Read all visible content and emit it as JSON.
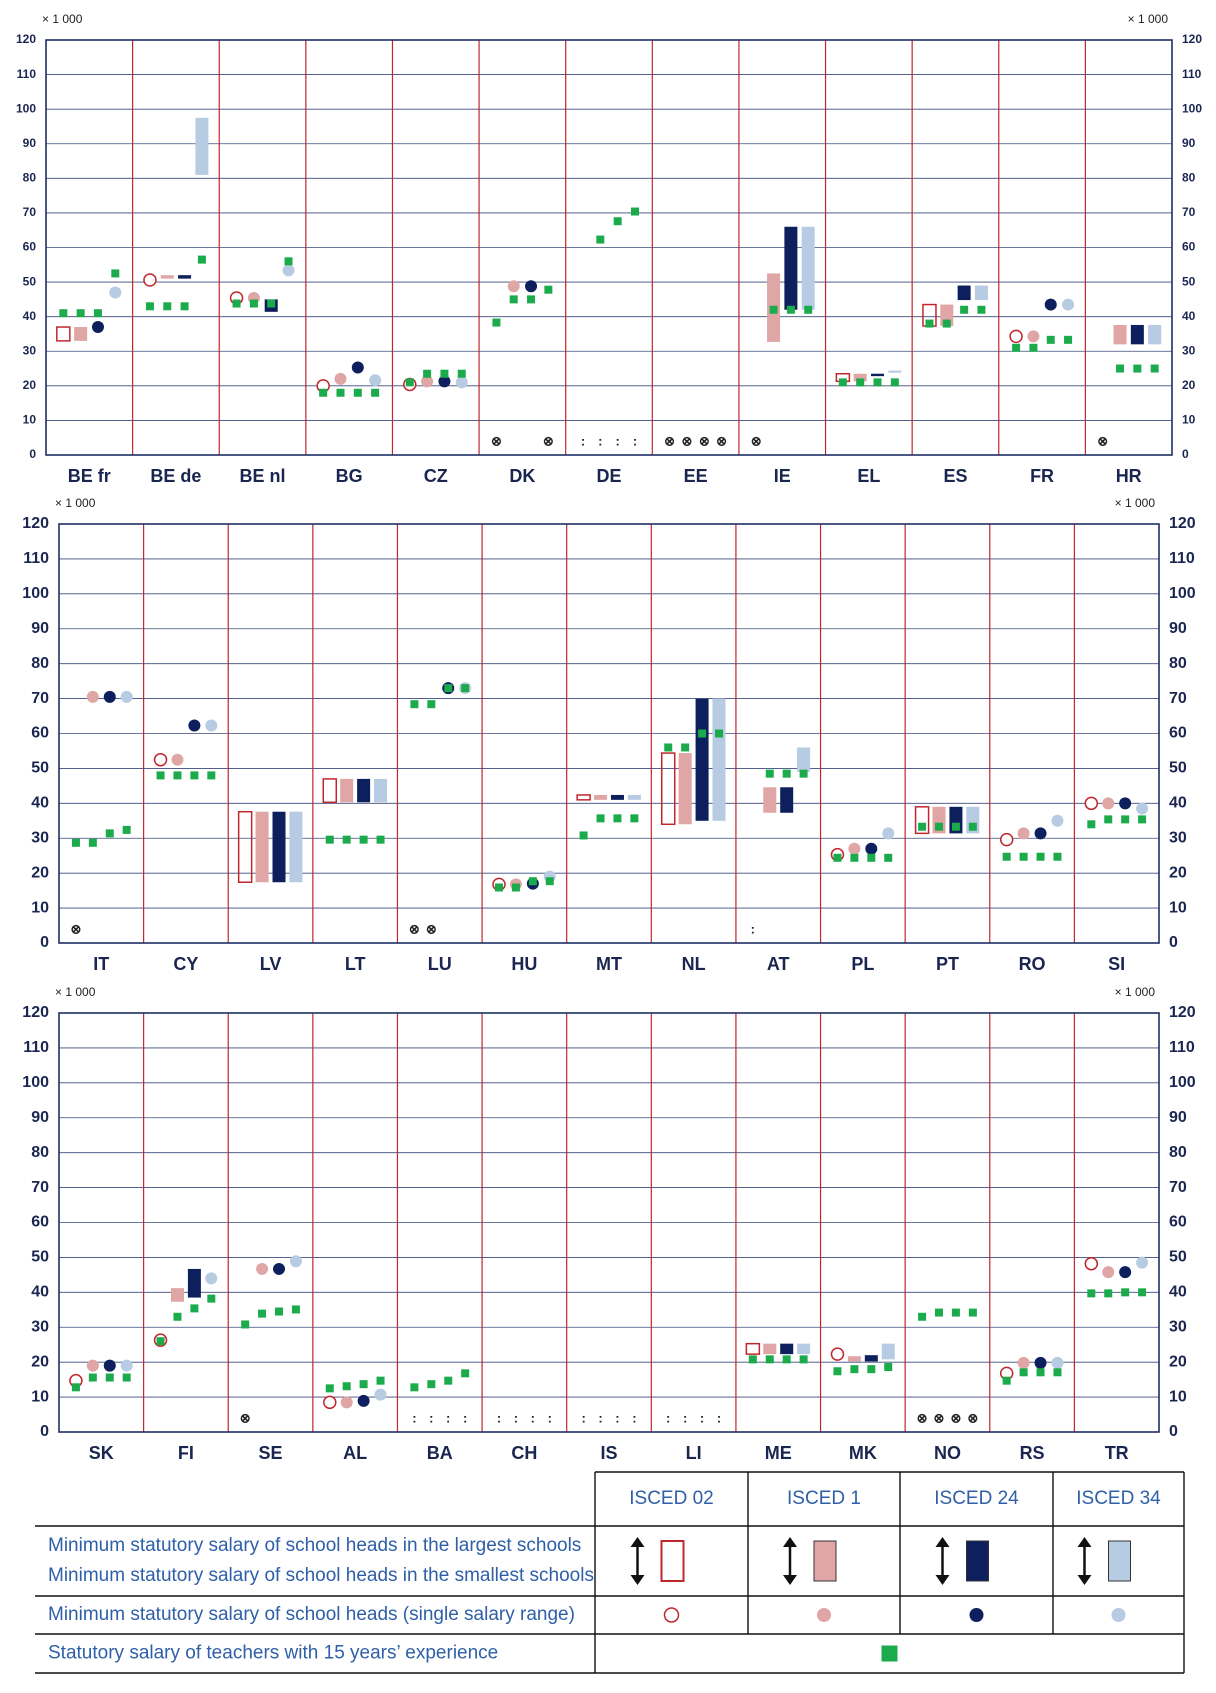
{
  "chart_data": [
    {
      "type": "range",
      "unit_label": "× 1 000",
      "ylim": [
        0,
        120
      ],
      "yticks": [
        0,
        10,
        20,
        30,
        40,
        50,
        60,
        70,
        80,
        90,
        100,
        110,
        120
      ],
      "grid": true,
      "categories": [
        "BE fr",
        "BE de",
        "BE nl",
        "BG",
        "CZ",
        "DK",
        "DE",
        "EE",
        "IE",
        "EL",
        "ES",
        "FR",
        "HR"
      ],
      "levels": [
        [
          [
            33,
            37
          ],
          [
            33,
            37
          ],
          37,
          47
        ],
        [
          50.6,
          [
            51,
            52
          ],
          [
            51,
            52
          ],
          [
            81,
            97.5
          ]
        ],
        [
          45.4,
          45.4,
          [
            41.4,
            45
          ],
          53.4
        ],
        [
          20,
          22,
          25.3,
          21.6
        ],
        [
          20.4,
          21.3,
          21.3,
          21
        ],
        [
          null,
          48.8,
          48.8,
          null
        ],
        [
          null,
          null,
          null,
          null
        ],
        [
          null,
          null,
          null,
          null
        ],
        [
          null,
          [
            32.7,
            52.5
          ],
          [
            42,
            66
          ],
          [
            42,
            66
          ]
        ],
        [
          [
            21.3,
            23.5
          ],
          [
            21.3,
            23.5
          ],
          [
            22.8,
            23.5
          ],
          [
            23.8,
            24.4
          ]
        ],
        [
          [
            37.3,
            43.5
          ],
          [
            37.3,
            43.5
          ],
          [
            44.8,
            49
          ],
          [
            44.8,
            49
          ]
        ],
        [
          34.3,
          34.3,
          43.5,
          43.5
        ],
        [
          null,
          [
            32,
            37.6
          ],
          [
            32,
            37.6
          ],
          [
            32,
            37.6
          ]
        ]
      ],
      "teacher": [
        [
          41,
          41,
          41,
          52.5
        ],
        [
          43,
          43,
          43,
          56.5
        ],
        [
          43.8,
          43.8,
          43.8,
          56
        ],
        [
          18,
          18,
          18,
          18
        ],
        [
          21,
          23.5,
          23.5,
          23.5
        ],
        [
          38.3,
          45,
          45,
          47.8
        ],
        [
          null,
          62.3,
          67.6,
          70.4
        ],
        [
          null,
          null,
          null,
          null
        ],
        [
          null,
          42,
          42,
          42
        ],
        [
          21,
          21,
          21,
          21
        ],
        [
          38,
          38,
          42,
          42
        ],
        [
          31,
          31,
          33.3,
          33.3
        ],
        [
          null,
          25,
          25,
          25
        ]
      ],
      "notes": [
        [
          null,
          null,
          null,
          null
        ],
        [
          null,
          null,
          null,
          null
        ],
        [
          null,
          null,
          null,
          null
        ],
        [
          null,
          null,
          null,
          null
        ],
        [
          null,
          null,
          null,
          null
        ],
        [
          "⊗",
          null,
          null,
          "⊗"
        ],
        [
          ":",
          ":",
          ":",
          ":"
        ],
        [
          "⊗",
          "⊗",
          "⊗",
          "⊗"
        ],
        [
          "⊗",
          null,
          null,
          null
        ],
        [
          null,
          null,
          null,
          null
        ],
        [
          null,
          null,
          null,
          null
        ],
        [
          null,
          null,
          null,
          null
        ],
        [
          "⊗",
          null,
          null,
          null
        ]
      ]
    },
    {
      "type": "range",
      "unit_label": "× 1 000",
      "ylim": [
        0,
        120
      ],
      "yticks": [
        0,
        10,
        20,
        30,
        40,
        50,
        60,
        70,
        80,
        90,
        100,
        110,
        120
      ],
      "grid": true,
      "categories": [
        "IT",
        "CY",
        "LV",
        "LT",
        "LU",
        "HU",
        "MT",
        "NL",
        "AT",
        "PL",
        "PT",
        "RO",
        "SI"
      ],
      "levels": [
        [
          null,
          70.5,
          70.5,
          70.5
        ],
        [
          52.5,
          52.5,
          62.3,
          62.3
        ],
        [
          [
            17.4,
            37.6
          ],
          [
            17.4,
            37.6
          ],
          [
            17.4,
            37.6
          ],
          [
            17.4,
            37.6
          ]
        ],
        [
          [
            40.3,
            47
          ],
          [
            40.3,
            47
          ],
          [
            40.3,
            47
          ],
          [
            40.3,
            47
          ]
        ],
        [
          null,
          null,
          73,
          73
        ],
        [
          16.8,
          16.8,
          17,
          19
        ],
        [
          [
            41,
            42.4
          ],
          [
            41,
            42.4
          ],
          [
            41,
            42.4
          ],
          [
            41,
            42.4
          ]
        ],
        [
          [
            34,
            54.4
          ],
          [
            34,
            54.4
          ],
          [
            35,
            70
          ],
          [
            35,
            70
          ]
        ],
        [
          null,
          [
            37.3,
            44.6
          ],
          [
            37.3,
            44.6
          ],
          [
            49,
            56
          ]
        ],
        [
          25.3,
          27,
          27,
          31.4
        ],
        [
          [
            31.4,
            39
          ],
          [
            31.4,
            39
          ],
          [
            31.4,
            39
          ],
          [
            31.4,
            39
          ]
        ],
        [
          29.6,
          31.4,
          31.4,
          35
        ],
        [
          40,
          40,
          40,
          38.5
        ]
      ],
      "teacher": [
        [
          28.7,
          28.7,
          31.4,
          32.4
        ],
        [
          48,
          48,
          48,
          48
        ],
        [
          null,
          null,
          null,
          null
        ],
        [
          29.6,
          29.6,
          29.6,
          29.6
        ],
        [
          68.4,
          68.4,
          73,
          73
        ],
        [
          15.9,
          15.9,
          17.7,
          17.7
        ],
        [
          30.8,
          35.7,
          35.7,
          35.7
        ],
        [
          56,
          56,
          60,
          60
        ],
        [
          null,
          48.5,
          48.5,
          48.5
        ],
        [
          24.4,
          24.4,
          24.4,
          24.4
        ],
        [
          33.3,
          33.3,
          33.3,
          33.3
        ],
        [
          24.7,
          24.7,
          24.7,
          24.7
        ],
        [
          34,
          35.4,
          35.4,
          35.4
        ]
      ],
      "notes": [
        [
          "⊗",
          null,
          null,
          null
        ],
        [
          null,
          null,
          null,
          null
        ],
        [
          null,
          null,
          null,
          null
        ],
        [
          null,
          null,
          null,
          null
        ],
        [
          "⊗",
          "⊗",
          null,
          null
        ],
        [
          null,
          null,
          null,
          null
        ],
        [
          null,
          null,
          null,
          null
        ],
        [
          null,
          null,
          null,
          null
        ],
        [
          ":",
          null,
          null,
          null
        ],
        [
          null,
          null,
          null,
          null
        ],
        [
          null,
          null,
          null,
          null
        ],
        [
          null,
          null,
          null,
          null
        ],
        [
          null,
          null,
          null,
          null
        ]
      ]
    },
    {
      "type": "range",
      "unit_label": "× 1 000",
      "ylim": [
        0,
        120
      ],
      "yticks": [
        0,
        10,
        20,
        30,
        40,
        50,
        60,
        70,
        80,
        90,
        100,
        110,
        120
      ],
      "grid": true,
      "categories": [
        "SK",
        "FI",
        "SE",
        "AL",
        "BA",
        "CH",
        "IS",
        "LI",
        "ME",
        "MK",
        "NO",
        "RS",
        "TR"
      ],
      "levels": [
        [
          14.7,
          19,
          19,
          19
        ],
        [
          26.3,
          [
            37.3,
            41.2
          ],
          [
            38.5,
            46.7
          ],
          44
        ],
        [
          null,
          46.7,
          46.7,
          48.9
        ],
        [
          8.5,
          8.5,
          8.9,
          10.7
        ],
        [
          null,
          null,
          null,
          null
        ],
        [
          null,
          null,
          null,
          null
        ],
        [
          null,
          null,
          null,
          null
        ],
        [
          null,
          null,
          null,
          null
        ],
        [
          [
            22.3,
            25.3
          ],
          [
            22.3,
            25.3
          ],
          [
            22.3,
            25.3
          ],
          [
            22.3,
            25.3
          ]
        ],
        [
          22.3,
          [
            20.2,
            21.7
          ],
          [
            20.2,
            22
          ],
          [
            20.8,
            25.3
          ]
        ],
        [
          null,
          null,
          null,
          null
        ],
        [
          16.8,
          19.8,
          19.8,
          19.8
        ],
        [
          48.2,
          45.8,
          45.8,
          48.5
        ]
      ],
      "teacher": [
        [
          12.8,
          15.6,
          15.6,
          15.6
        ],
        [
          26,
          33,
          35.4,
          38.2
        ],
        [
          30.8,
          33.9,
          34.5,
          35.1
        ],
        [
          12.5,
          13.1,
          13.7,
          14.7
        ],
        [
          12.8,
          13.7,
          14.7,
          16.8
        ],
        [
          null,
          null,
          null,
          null
        ],
        [
          null,
          null,
          null,
          null
        ],
        [
          null,
          null,
          null,
          null
        ],
        [
          20.8,
          20.8,
          20.8,
          20.8
        ],
        [
          17.4,
          18,
          18,
          18.6
        ],
        [
          33,
          34.2,
          34.2,
          34.2
        ],
        [
          14.7,
          17.1,
          17.1,
          17.1
        ],
        [
          39.7,
          39.7,
          40,
          40
        ]
      ],
      "notes": [
        [
          null,
          null,
          null,
          null
        ],
        [
          null,
          null,
          null,
          null
        ],
        [
          "⊗",
          null,
          null,
          null
        ],
        [
          null,
          null,
          null,
          null
        ],
        [
          ":",
          ":",
          ":",
          ":"
        ],
        [
          ":",
          ":",
          ":",
          ":"
        ],
        [
          ":",
          ":",
          ":",
          ":"
        ],
        [
          ":",
          ":",
          ":",
          ":"
        ],
        [
          null,
          null,
          null,
          null
        ],
        [
          null,
          null,
          null,
          null
        ],
        [
          "⊗",
          "⊗",
          "⊗",
          "⊗"
        ],
        [
          null,
          null,
          null,
          null
        ],
        [
          null,
          null,
          null,
          null
        ]
      ]
    }
  ],
  "style": {
    "level_colors": [
      "#c0272d",
      "#e0a5a5",
      "#0d1f5c",
      "#b7cbe3"
    ],
    "teacher_color": "#1cab4c"
  },
  "legend": {
    "levels": [
      "ISCED 02",
      "ISCED 1",
      "ISCED 24",
      "ISCED 34"
    ],
    "range_largest": "Minimum statutory salary of school heads in the largest schools",
    "range_smallest": "Minimum statutory salary of school heads in the smallest schools",
    "single": "Minimum statutory salary of school heads (single salary range)",
    "teacher": "Statutory salary of teachers with 15 years’ experience"
  }
}
